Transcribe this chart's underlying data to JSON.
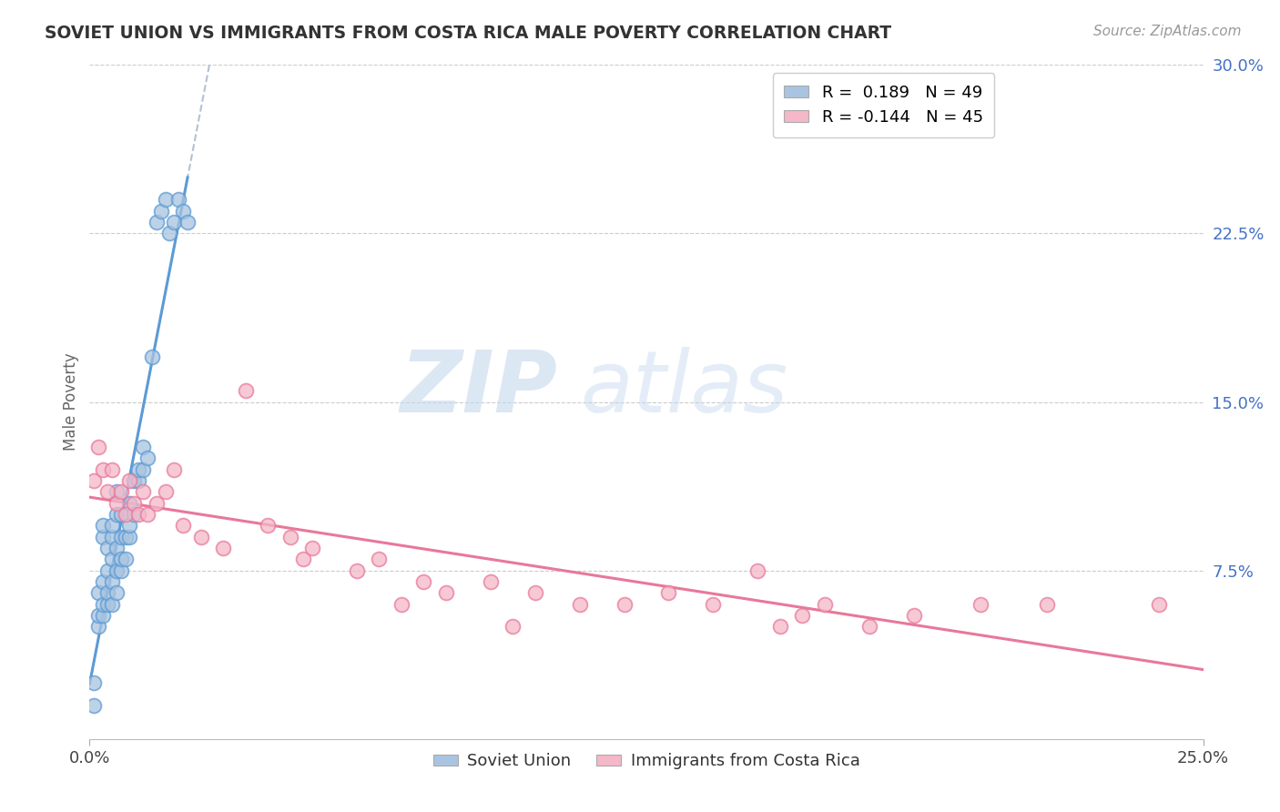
{
  "title": "SOVIET UNION VS IMMIGRANTS FROM COSTA RICA MALE POVERTY CORRELATION CHART",
  "source": "Source: ZipAtlas.com",
  "xlabel_soviet": "Soviet Union",
  "xlabel_costa_rica": "Immigrants from Costa Rica",
  "ylabel": "Male Poverty",
  "r_soviet": 0.189,
  "n_soviet": 49,
  "r_costa_rica": -0.144,
  "n_costa_rica": 45,
  "xlim": [
    0.0,
    0.25
  ],
  "ylim": [
    0.0,
    0.3
  ],
  "ytick_vals": [
    0.075,
    0.15,
    0.225,
    0.3
  ],
  "ytick_labels": [
    "7.5%",
    "15.0%",
    "22.5%",
    "30.0%"
  ],
  "color_soviet": "#a8c4e0",
  "color_soviet_line": "#5b9bd5",
  "color_costa_rica": "#f4b8c8",
  "color_costa_rica_line": "#e8789a",
  "color_dashed": "#aabbd0",
  "background_color": "#ffffff",
  "soviet_x": [
    0.001,
    0.001,
    0.002,
    0.002,
    0.002,
    0.003,
    0.003,
    0.003,
    0.003,
    0.003,
    0.004,
    0.004,
    0.004,
    0.004,
    0.005,
    0.005,
    0.005,
    0.005,
    0.005,
    0.006,
    0.006,
    0.006,
    0.006,
    0.006,
    0.007,
    0.007,
    0.007,
    0.007,
    0.008,
    0.008,
    0.009,
    0.009,
    0.009,
    0.01,
    0.01,
    0.011,
    0.011,
    0.012,
    0.012,
    0.013,
    0.014,
    0.015,
    0.016,
    0.017,
    0.018,
    0.019,
    0.02,
    0.021,
    0.022
  ],
  "soviet_y": [
    0.015,
    0.025,
    0.05,
    0.055,
    0.065,
    0.055,
    0.06,
    0.07,
    0.09,
    0.095,
    0.06,
    0.065,
    0.075,
    0.085,
    0.06,
    0.07,
    0.08,
    0.09,
    0.095,
    0.065,
    0.075,
    0.085,
    0.1,
    0.11,
    0.075,
    0.08,
    0.09,
    0.1,
    0.08,
    0.09,
    0.09,
    0.095,
    0.105,
    0.1,
    0.115,
    0.115,
    0.12,
    0.12,
    0.13,
    0.125,
    0.17,
    0.23,
    0.235,
    0.24,
    0.225,
    0.23,
    0.24,
    0.235,
    0.23
  ],
  "costa_rica_x": [
    0.001,
    0.002,
    0.003,
    0.004,
    0.005,
    0.006,
    0.007,
    0.008,
    0.009,
    0.01,
    0.011,
    0.012,
    0.013,
    0.015,
    0.017,
    0.019,
    0.021,
    0.025,
    0.03,
    0.035,
    0.04,
    0.045,
    0.048,
    0.05,
    0.06,
    0.065,
    0.07,
    0.075,
    0.08,
    0.09,
    0.095,
    0.1,
    0.11,
    0.12,
    0.13,
    0.14,
    0.15,
    0.155,
    0.16,
    0.165,
    0.175,
    0.185,
    0.2,
    0.215,
    0.24
  ],
  "costa_rica_y": [
    0.115,
    0.13,
    0.12,
    0.11,
    0.12,
    0.105,
    0.11,
    0.1,
    0.115,
    0.105,
    0.1,
    0.11,
    0.1,
    0.105,
    0.11,
    0.12,
    0.095,
    0.09,
    0.085,
    0.155,
    0.095,
    0.09,
    0.08,
    0.085,
    0.075,
    0.08,
    0.06,
    0.07,
    0.065,
    0.07,
    0.05,
    0.065,
    0.06,
    0.06,
    0.065,
    0.06,
    0.075,
    0.05,
    0.055,
    0.06,
    0.05,
    0.055,
    0.06,
    0.06,
    0.06
  ]
}
